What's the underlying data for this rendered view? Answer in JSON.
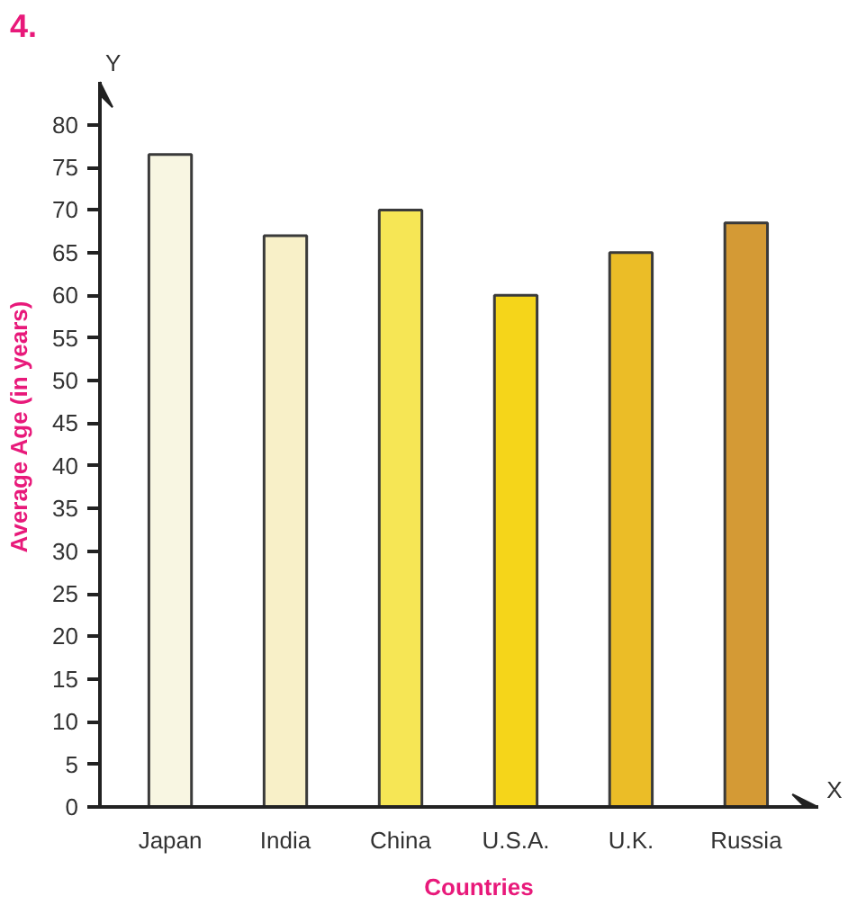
{
  "chart_data": {
    "type": "bar",
    "title": "4.",
    "xlabel": "Countries",
    "ylabel": "Average Age (in years)",
    "categories": [
      "Japan",
      "India",
      "China",
      "U.S.A.",
      "U.K.",
      "Russia"
    ],
    "values": [
      76.5,
      67,
      70,
      60,
      65,
      68.5
    ],
    "colors": [
      "#f8f6e2",
      "#f8f0c8",
      "#f6e655",
      "#f5d51a",
      "#ebbd27",
      "#d49a35"
    ],
    "ylim": [
      0,
      85
    ],
    "yticks": [
      0,
      5,
      10,
      15,
      20,
      25,
      30,
      35,
      40,
      45,
      50,
      55,
      60,
      65,
      70,
      75,
      80
    ],
    "grid": false,
    "annotations": [
      "Y",
      "X"
    ]
  }
}
